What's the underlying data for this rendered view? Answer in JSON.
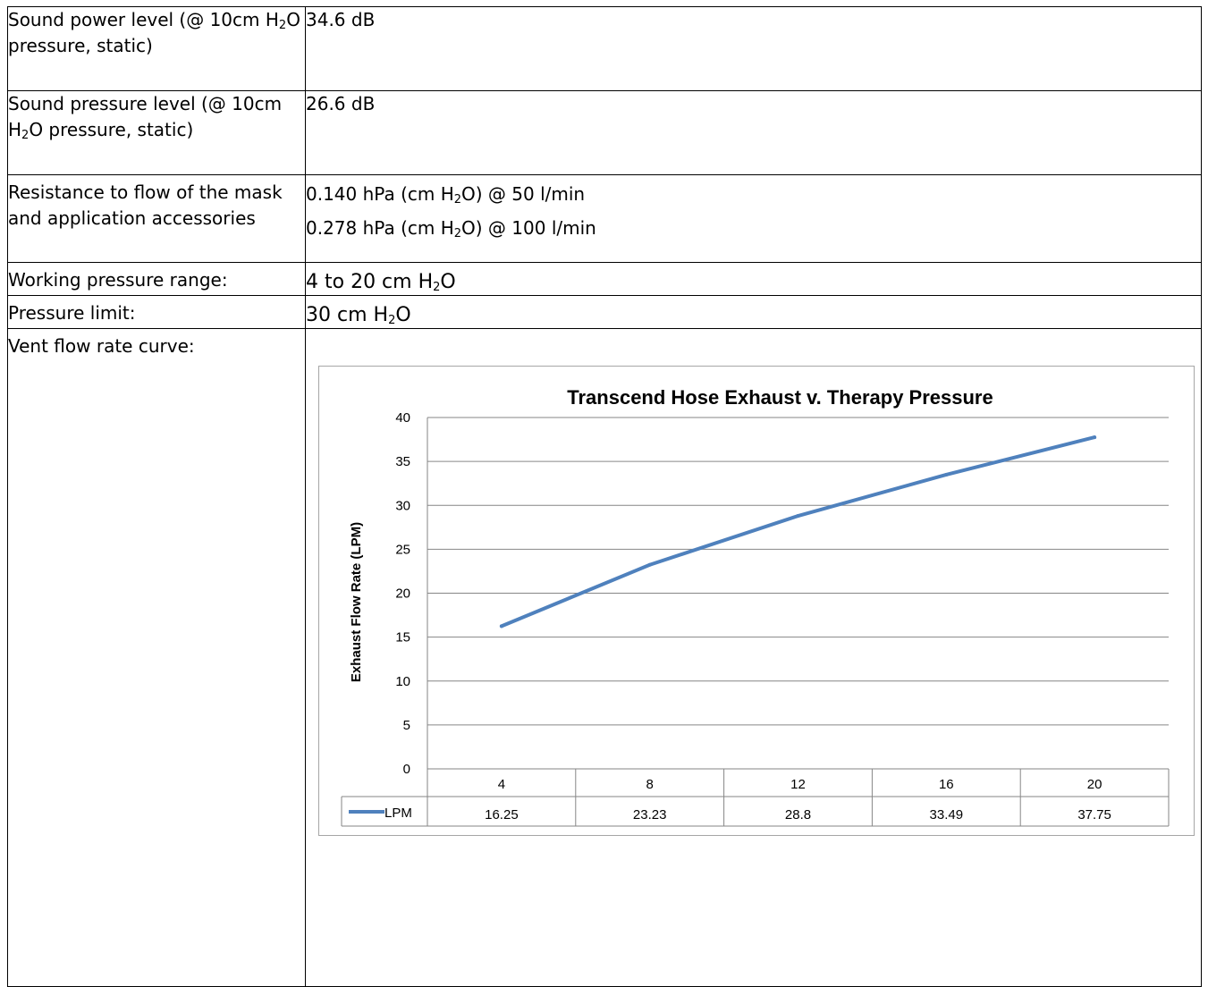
{
  "rows": {
    "sound_power": {
      "label_pre": "Sound power level (@ 10cm H",
      "label_sub": "2",
      "label_post": "O pressure, static)",
      "value": "34.6 dB"
    },
    "sound_pressure": {
      "label_pre": "Sound pressure level (@ 10cm H",
      "label_sub": "2",
      "label_post": "O pressure, static)",
      "value": "26.6 dB"
    },
    "resistance": {
      "label": "Resistance to flow of the mask and application accessories",
      "line1_pre": "0.140 hPa (cm H",
      "line1_sub": "2",
      "line1_post": "O) @ 50 l/min",
      "line2_pre": "0.278 hPa (cm  H",
      "line2_sub": "2",
      "line2_post": "O) @ 100 l/min"
    },
    "working_pressure": {
      "label": "Working pressure range:",
      "value_pre": "4 to 20 cm H",
      "value_sub": "2",
      "value_post": "O"
    },
    "pressure_limit": {
      "label": "Pressure limit:",
      "value_pre": "30 cm H",
      "value_sub": "2",
      "value_post": "O"
    },
    "vent_flow": {
      "label": "Vent flow rate curve:"
    }
  },
  "chart_data": {
    "type": "line",
    "title": "Transcend Hose Exhaust v. Therapy Pressure",
    "xlabel": "",
    "ylabel": "Exhaust  Flow  Rate (LPM)",
    "categories": [
      "4",
      "8",
      "12",
      "16",
      "20"
    ],
    "series": [
      {
        "name": "LPM",
        "values": [
          16.25,
          23.23,
          28.8,
          33.49,
          37.75
        ],
        "color": "#4f81bd"
      }
    ],
    "value_labels": [
      "16.25",
      "23.23",
      "28.8",
      "33.49",
      "37.75"
    ],
    "ylim": [
      0,
      40
    ],
    "yticks": [
      0,
      5,
      10,
      15,
      20,
      25,
      30,
      35,
      40
    ],
    "grid": true,
    "data_table": true,
    "legend": "in data table"
  }
}
